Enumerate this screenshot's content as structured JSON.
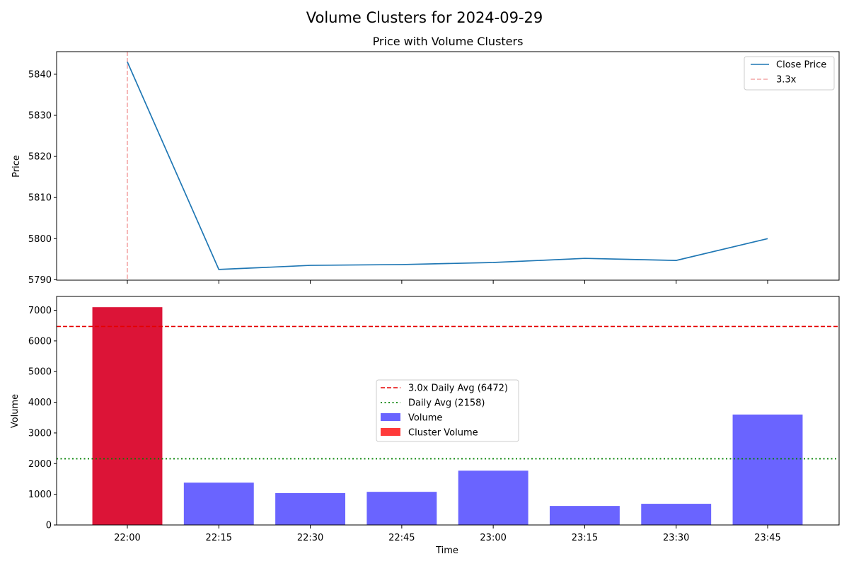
{
  "chart_data": {
    "suptitle": "Volume Clusters for 2024-09-29",
    "categories": [
      "22:00",
      "22:15",
      "22:30",
      "22:45",
      "23:00",
      "23:15",
      "23:30",
      "23:45"
    ],
    "price_panel": {
      "type": "line",
      "title": "Price with Volume Clusters",
      "ylabel": "Price",
      "ylim": [
        5789.9,
        5845.5
      ],
      "yticks": [
        5790,
        5800,
        5810,
        5820,
        5830,
        5840
      ],
      "series": [
        {
          "name": "Close Price",
          "values": [
            5843.0,
            5792.5,
            5793.5,
            5793.7,
            5794.2,
            5795.2,
            5794.7,
            5800.0
          ],
          "color": "#1f77b4"
        }
      ],
      "cluster_markers": [
        {
          "category": "22:00",
          "label": "3.3x",
          "color": "#f4a6a6"
        }
      ],
      "legend": {
        "placement": "top-right",
        "entries": [
          "Close Price",
          "3.3x"
        ]
      }
    },
    "volume_panel": {
      "type": "bar",
      "xlabel": "Time",
      "ylabel": "Volume",
      "ylim": [
        0,
        7450
      ],
      "yticks": [
        0,
        1000,
        2000,
        3000,
        4000,
        5000,
        6000,
        7000
      ],
      "values": [
        7100,
        1380,
        1040,
        1080,
        1770,
        620,
        690,
        3600
      ],
      "cluster_flags": [
        true,
        false,
        false,
        false,
        false,
        false,
        false,
        false
      ],
      "volume_color": "#6a64ff",
      "cluster_color": "#dc1437",
      "cluster_legend_color": "#ff3a3a",
      "hlines": [
        {
          "label": "3.0x Daily Avg (6472)",
          "value": 6472,
          "color": "#e50000",
          "style": "dashed"
        },
        {
          "label": "Daily Avg (2158)",
          "value": 2158,
          "color": "#008000",
          "style": "dotted"
        }
      ],
      "legend": {
        "placement": "center",
        "entries": [
          "3.0x Daily Avg (6472)",
          "Daily Avg (2158)",
          "Volume",
          "Cluster Volume"
        ]
      }
    }
  }
}
